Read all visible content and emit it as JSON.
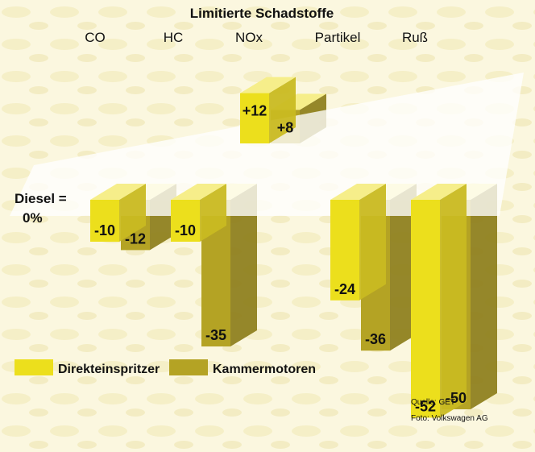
{
  "chart_data": {
    "type": "bar",
    "title": "Limitierte Schadstoffe",
    "baseline_label_line1": "Diesel =",
    "baseline_label_line2": "0%",
    "categories": [
      "CO",
      "HC",
      "NOx",
      "Partikel",
      "Ruß"
    ],
    "series": [
      {
        "name": "Direkteinspritzer",
        "color": "#ecdf1c",
        "values": [
          -10,
          -10,
          12,
          -24,
          -52
        ]
      },
      {
        "name": "Kammermotoren",
        "color": "#b4a324",
        "values": [
          -12,
          -35,
          8,
          -36,
          -50
        ]
      }
    ],
    "value_labels": {
      "Direkteinspritzer": [
        "-10",
        "-10",
        "+12",
        "-24",
        "-52"
      ],
      "Kammermotoren": [
        "-12",
        "-35",
        "+8",
        "-36",
        "-50"
      ]
    },
    "grid": false,
    "legend_position": "bottom-left"
  },
  "source": {
    "line1": "Quelle: GET",
    "line2": "Foto: Volkswagen AG"
  },
  "colors": {
    "background": "#fbf7df",
    "baseline_band": "#ffffff",
    "bar_front": "#ecdf1c",
    "bar_side": "#b4a324",
    "bar_top": "#f6ee8a"
  }
}
